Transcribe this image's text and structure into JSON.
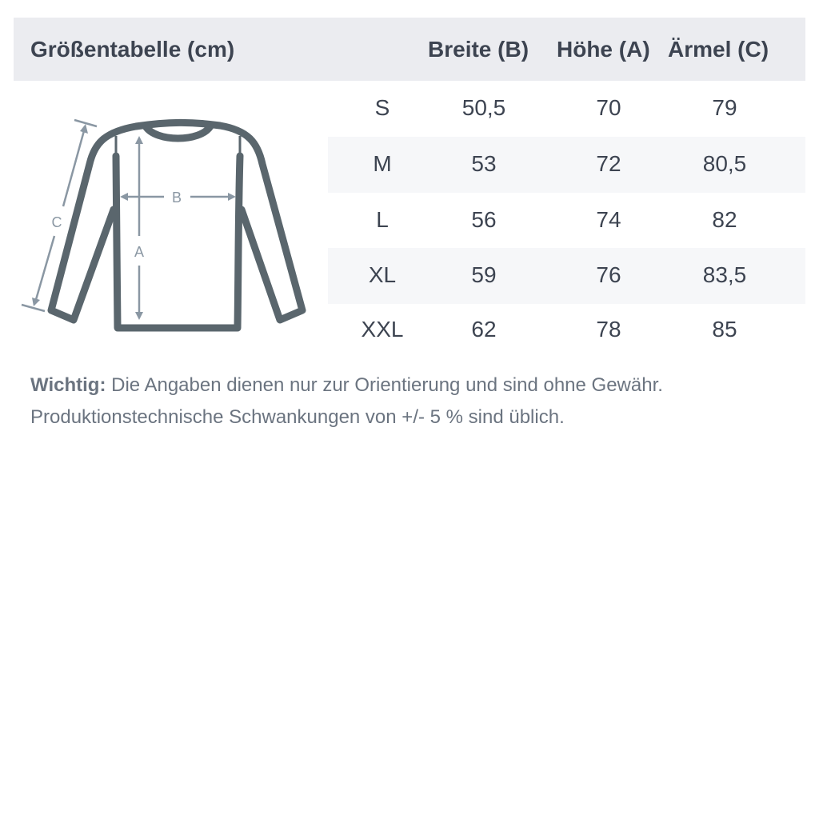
{
  "header": {
    "title": "Größentabelle (cm)",
    "columns": [
      "Breite (B)",
      "Höhe (A)",
      "Ärmel (C)"
    ]
  },
  "diagram": {
    "labels": {
      "a": "A",
      "b": "B",
      "c": "C"
    },
    "outline_color": "#5a666d",
    "arrow_color": "#8a97a3"
  },
  "rows": [
    {
      "size": "S",
      "breite": "50,5",
      "hoehe": "70",
      "aermel": "79"
    },
    {
      "size": "M",
      "breite": "53",
      "hoehe": "72",
      "aermel": "80,5"
    },
    {
      "size": "L",
      "breite": "56",
      "hoehe": "74",
      "aermel": "82"
    },
    {
      "size": "XL",
      "breite": "59",
      "hoehe": "76",
      "aermel": "83,5"
    },
    {
      "size": "XXL",
      "breite": "62",
      "hoehe": "78",
      "aermel": "85"
    }
  ],
  "note": {
    "label": "Wichtig:",
    "line1": " Die Angaben dienen nur zur Orientierung und sind ohne Gewähr.",
    "line2": "Produktionstechnische Schwankungen von +/- 5 % sind üblich."
  }
}
